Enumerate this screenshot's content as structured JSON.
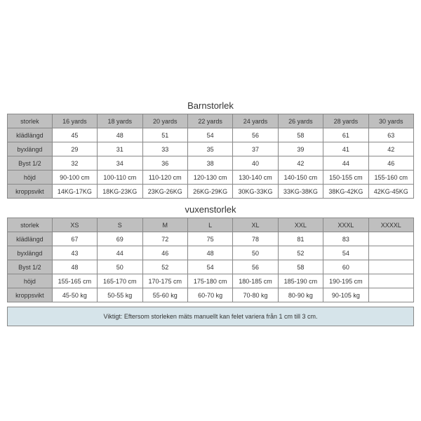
{
  "children": {
    "title": "Barnstorlek",
    "columns": [
      "storlek",
      "16 yards",
      "18 yards",
      "20 yards",
      "22 yards",
      "24 yards",
      "26 yards",
      "28 yards",
      "30 yards"
    ],
    "rows": [
      {
        "label": "klädlängd",
        "cells": [
          "45",
          "48",
          "51",
          "54",
          "56",
          "58",
          "61",
          "63"
        ]
      },
      {
        "label": "byxlängd",
        "cells": [
          "29",
          "31",
          "33",
          "35",
          "37",
          "39",
          "41",
          "42"
        ]
      },
      {
        "label": "Byst 1/2",
        "cells": [
          "32",
          "34",
          "36",
          "38",
          "40",
          "42",
          "44",
          "46"
        ]
      },
      {
        "label": "höjd",
        "cells": [
          "90-100 cm",
          "100-110 cm",
          "110-120 cm",
          "120-130 cm",
          "130-140 cm",
          "140-150 cm",
          "150-155 cm",
          "155-160 cm"
        ]
      },
      {
        "label": "kroppsvikt",
        "cells": [
          "14KG-17KG",
          "18KG-23KG",
          "23KG-26KG",
          "26KG-29KG",
          "30KG-33KG",
          "33KG-38KG",
          "38KG-42KG",
          "42KG-45KG"
        ]
      }
    ]
  },
  "adult": {
    "title": "vuxenstorlek",
    "columns": [
      "storlek",
      "XS",
      "S",
      "M",
      "L",
      "XL",
      "XXL",
      "XXXL",
      "XXXXL"
    ],
    "rows": [
      {
        "label": "klädlängd",
        "cells": [
          "67",
          "69",
          "72",
          "75",
          "78",
          "81",
          "83",
          ""
        ]
      },
      {
        "label": "byxlängd",
        "cells": [
          "43",
          "44",
          "46",
          "48",
          "50",
          "52",
          "54",
          ""
        ]
      },
      {
        "label": "Byst 1/2",
        "cells": [
          "48",
          "50",
          "52",
          "54",
          "56",
          "58",
          "60",
          ""
        ]
      },
      {
        "label": "höjd",
        "cells": [
          "155-165 cm",
          "165-170 cm",
          "170-175 cm",
          "175-180 cm",
          "180-185 cm",
          "185-190 cm",
          "190-195 cm",
          ""
        ]
      },
      {
        "label": "kroppsvikt",
        "cells": [
          "45-50 kg",
          "50-55 kg",
          "55-60 kg",
          "60-70 kg",
          "70-80 kg",
          "80-90 kg",
          "90-105 kg",
          ""
        ]
      }
    ]
  },
  "note": "Viktigt: Eftersom storleken mäts manuellt kan felet variera från 1 cm till 3 cm.",
  "style": {
    "header_bg": "#bfbfbf",
    "border_color": "#888888",
    "note_bg": "#d6e4ea",
    "text_color": "#333333",
    "cell_fontsize": 9,
    "title_fontsize": 13
  }
}
